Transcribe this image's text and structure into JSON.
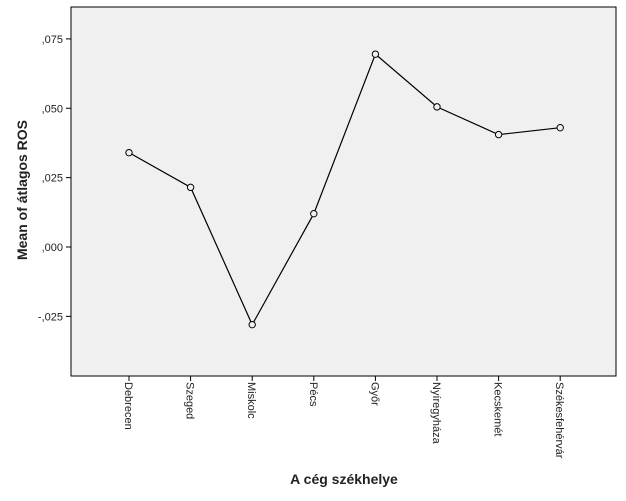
{
  "chart_data": {
    "type": "line",
    "title": "",
    "xlabel": "A cég székhelye",
    "ylabel": "Mean of átlagos ROS",
    "categories": [
      "Debrecen",
      "Szeged",
      "Miskolc",
      "Pécs",
      "Győr",
      "Nyíregyháza",
      "Kecskemét",
      "Székesfehérvár"
    ],
    "values": [
      0.034,
      0.0215,
      -0.028,
      0.012,
      0.0695,
      0.0505,
      0.0405,
      0.043
    ],
    "ylim": [
      -0.0465,
      0.0865
    ],
    "yticks": [
      -0.025,
      0.0,
      0.025,
      0.05,
      0.075
    ],
    "ytick_labels": [
      "-,025",
      ",000",
      ",025",
      ",050",
      ",075"
    ],
    "grid": false,
    "legend": "none",
    "colors": {
      "plot_background": "#f0f0f0",
      "line": "#000000",
      "marker_stroke": "#000000",
      "marker_fill": "#f0f0f0"
    }
  }
}
